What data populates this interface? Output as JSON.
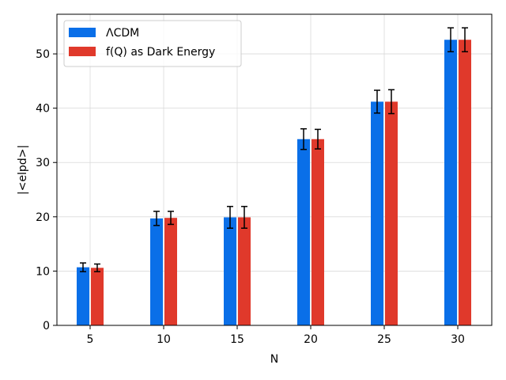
{
  "chart_data": {
    "type": "bar",
    "xlabel": "N",
    "ylabel": "|<elpd>|",
    "categories": [
      "5",
      "10",
      "15",
      "20",
      "25",
      "30"
    ],
    "ylim": [
      0,
      57.3
    ],
    "yticks": [
      0,
      10,
      20,
      30,
      40,
      50
    ],
    "grid": true,
    "legend_position": "top-left",
    "series": [
      {
        "name": "ΛCDM",
        "color": "#0a6fe8",
        "values": [
          10.7,
          19.7,
          19.9,
          34.3,
          41.2,
          52.6
        ],
        "errors": [
          0.8,
          1.3,
          2.0,
          1.9,
          2.1,
          2.2
        ]
      },
      {
        "name": "f(Q) as Dark Energy",
        "color": "#e0392b",
        "values": [
          10.6,
          19.8,
          19.9,
          34.3,
          41.2,
          52.6
        ],
        "errors": [
          0.7,
          1.2,
          2.0,
          1.8,
          2.2,
          2.2
        ]
      }
    ]
  }
}
